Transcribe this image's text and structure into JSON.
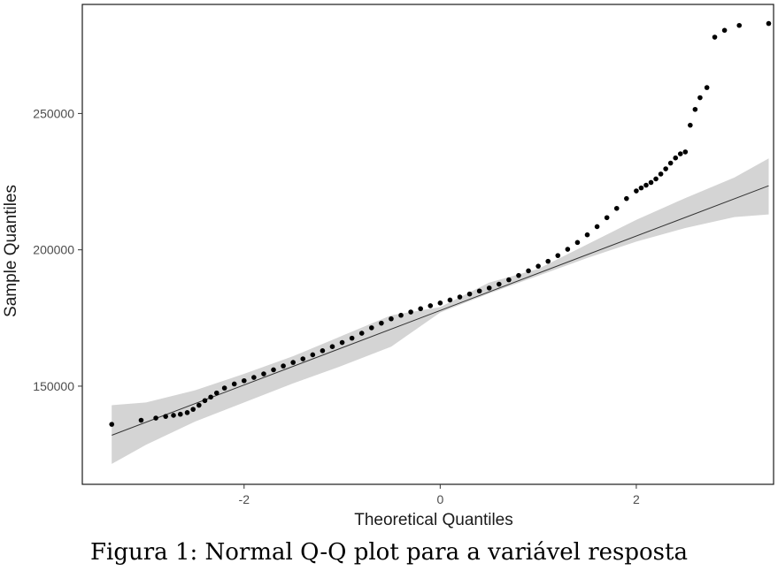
{
  "chart_data": {
    "type": "scatter",
    "xlabel": "Theoretical Quantiles",
    "ylabel": "Sample Quantiles",
    "xlim": [
      -3.65,
      3.4
    ],
    "ylim": [
      114000,
      290000
    ],
    "xticks": [
      -2,
      0,
      2
    ],
    "xtick_labels": [
      "-2",
      "0",
      "2"
    ],
    "yticks": [
      150000,
      200000,
      250000
    ],
    "ytick_labels": [
      "150000",
      "200000",
      "250000"
    ],
    "grid": false,
    "legend": "none",
    "reference_line": {
      "x": [
        -3.35,
        3.35
      ],
      "y": [
        132000,
        223500
      ]
    },
    "confidence_band": {
      "x": [
        -3.35,
        -3.0,
        -2.5,
        -2.0,
        -1.5,
        -1.0,
        -0.5,
        0.0,
        0.5,
        1.0,
        1.5,
        2.0,
        2.5,
        3.0,
        3.35
      ],
      "lower": [
        121500,
        128500,
        137000,
        144000,
        151000,
        157500,
        164500,
        177000,
        184000,
        190500,
        197000,
        203000,
        208000,
        212000,
        213000
      ],
      "upper": [
        143000,
        144000,
        148500,
        154500,
        161000,
        168500,
        176000,
        179000,
        188000,
        193000,
        202000,
        211000,
        219000,
        226500,
        233500
      ]
    },
    "points": {
      "x": [
        -3.35,
        -3.05,
        -2.9,
        -2.8,
        -2.72,
        -2.65,
        -2.58,
        -2.52,
        -2.46,
        -2.4,
        -2.34,
        -2.28,
        -2.2,
        -2.1,
        -2.0,
        -1.9,
        -1.8,
        -1.7,
        -1.6,
        -1.5,
        -1.4,
        -1.3,
        -1.2,
        -1.1,
        -1.0,
        -0.9,
        -0.8,
        -0.7,
        -0.6,
        -0.5,
        -0.4,
        -0.3,
        -0.2,
        -0.1,
        0.0,
        0.1,
        0.2,
        0.3,
        0.4,
        0.5,
        0.6,
        0.7,
        0.8,
        0.9,
        1.0,
        1.1,
        1.2,
        1.3,
        1.4,
        1.5,
        1.6,
        1.7,
        1.8,
        1.9,
        2.0,
        2.05,
        2.1,
        2.15,
        2.2,
        2.25,
        2.3,
        2.35,
        2.4,
        2.45,
        2.5,
        2.55,
        2.6,
        2.65,
        2.72,
        2.8,
        2.9,
        3.05,
        3.35
      ],
      "y": [
        136000,
        137500,
        138300,
        138900,
        139300,
        139700,
        140300,
        141500,
        143000,
        144700,
        146000,
        147500,
        149300,
        150800,
        152000,
        153200,
        154500,
        156000,
        157400,
        158700,
        160000,
        161500,
        163000,
        164500,
        166000,
        167600,
        169400,
        171400,
        173100,
        174700,
        176000,
        177200,
        178400,
        179500,
        180500,
        181600,
        182700,
        183800,
        184900,
        186000,
        187400,
        189000,
        190600,
        192300,
        194000,
        195800,
        197900,
        200200,
        202700,
        205500,
        208500,
        211800,
        215200,
        218800,
        221600,
        222700,
        223700,
        224700,
        226000,
        227800,
        229700,
        231800,
        233700,
        235200,
        235900,
        245700,
        251500,
        255800,
        259500,
        278000,
        280500,
        282300,
        283000
      ]
    }
  },
  "caption": "Figura 1: Normal Q-Q plot para a variável resposta"
}
